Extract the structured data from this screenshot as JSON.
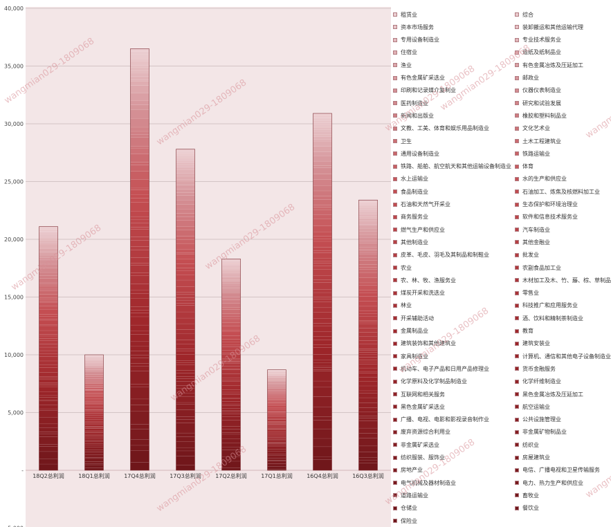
{
  "chart_data": {
    "type": "bar",
    "stacked": true,
    "categories": [
      "18Q2总利润",
      "18Q1总利润",
      "17Q4总利润",
      "17Q3总利润",
      "17Q2总利润",
      "17Q1总利润",
      "16Q4总利润",
      "16Q3总利润"
    ],
    "totals": [
      21100,
      10000,
      36500,
      27800,
      18300,
      8700,
      30900,
      23400
    ],
    "ylim": [
      -5000,
      40000
    ],
    "yticks": [
      -5000,
      0,
      5000,
      10000,
      15000,
      20000,
      25000,
      30000,
      35000,
      40000
    ],
    "ytick_labels": [
      "-5,000",
      "-",
      "5,000",
      "10,000",
      "15,000",
      "20,000",
      "25,000",
      "30,000",
      "35,000",
      "40,000"
    ],
    "grid": true,
    "legend_position": "right",
    "plot_background": "#f3e6e7",
    "series_names": [
      "保险业",
      "餐饮业",
      "仓储业",
      "畜牧业",
      "道路运输业",
      "电力、热力生产和供应业",
      "电气机械及器材制造业",
      "电信、广播电视和卫星传输服务",
      "房地产业",
      "房屋建筑业",
      "纺织服装、服饰业",
      "纺织业",
      "非金属矿采选业",
      "非金属矿物制品业",
      "废弃资源综合利用业",
      "公共设施管理业",
      "广播、电视、电影和影视录音制作业",
      "航空运输业",
      "黑色金属矿采选业",
      "黑色金属冶炼及压延加工",
      "互联网和相关服务",
      "化学纤维制造业",
      "化学原料及化学制品制造业",
      "货币金融服务",
      "机动车、电子产品和日用产品修理业",
      "计算机、通信和其他电子设备制造业",
      "家具制造业",
      "建筑安装业",
      "建筑装饰和其他建筑业",
      "教育",
      "金属制品业",
      "酒、饮料和精制茶制造业",
      "开采辅助活动",
      "科技推广和应用服务业",
      "林业",
      "零售业",
      "煤炭开采和洗选业",
      "木材加工及木、竹、藤、棕、草制品业",
      "农、林、牧、渔服务业",
      "农副食品加工业",
      "农业",
      "批发业",
      "皮革、毛皮、羽毛及其制品和制鞋业",
      "其他金融业",
      "其他制造业",
      "汽车制造业",
      "燃气生产和供应业",
      "软件和信息技术服务业",
      "商务服务业",
      "生态保护和环境治理业",
      "石油和天然气开采业",
      "石油加工、炼焦及核燃料加工业",
      "食品制造业",
      "水的生产和供应业",
      "水上运输业",
      "体育",
      "铁路、船舶、航空航天和其他运输设备制造业",
      "铁路运输业",
      "通用设备制造业",
      "土木工程建筑业",
      "卫生",
      "文化艺术业",
      "文教、工美、体育和娱乐用品制造业",
      "橡胶和塑料制品业",
      "新闻和出版业",
      "研究和试验发展",
      "医药制造业",
      "仪器仪表制造业",
      "印刷和记录媒介复制业",
      "邮政业",
      "有色金属矿采选业",
      "有色金属冶炼及压延加工",
      "渔业",
      "造纸及纸制品业",
      "住宿业",
      "专业技术服务业",
      "专用设备制造业",
      "装卸搬运和其他运输代理",
      "资本市场服务",
      "综合",
      "租赁业"
    ]
  },
  "watermark": "wangmian029-1809068"
}
